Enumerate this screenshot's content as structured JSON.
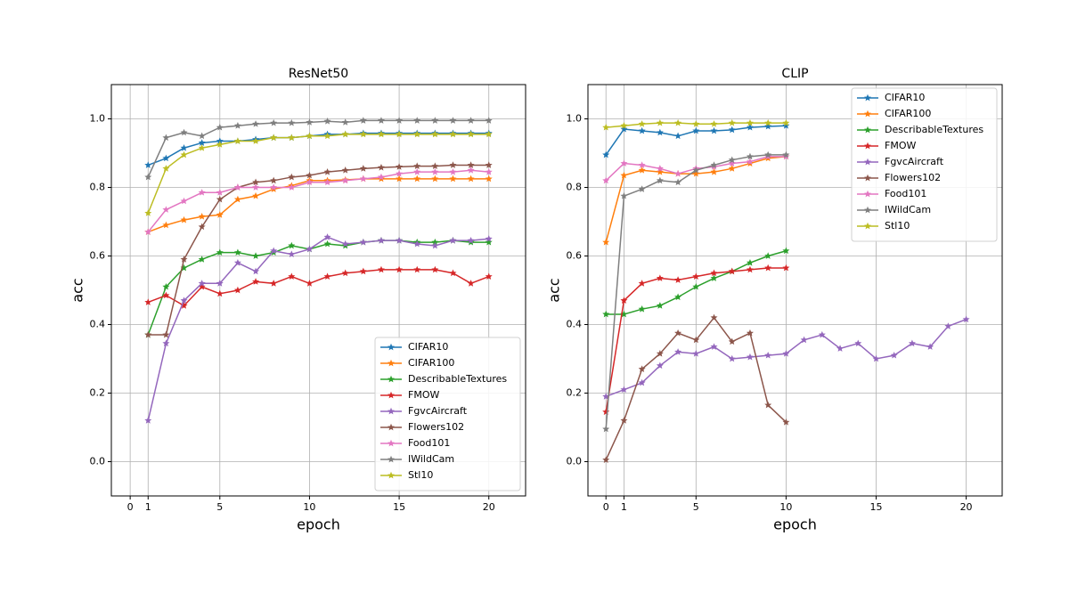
{
  "chart_data": [
    {
      "type": "line",
      "title": "ResNet50",
      "x_label": "epoch",
      "y_label": "acc",
      "x": [
        1,
        2,
        3,
        4,
        5,
        6,
        7,
        8,
        9,
        10,
        11,
        12,
        13,
        14,
        15,
        16,
        17,
        18,
        19,
        20
      ],
      "xlim": [
        -1.05,
        22.05
      ],
      "xticks": [
        0,
        1,
        5,
        10,
        15,
        20
      ],
      "ylim": [
        -0.1,
        1.1
      ],
      "yticks": [
        {
          "value": 0,
          "label": "0.0"
        },
        0.2,
        0.4,
        0.6,
        0.8,
        {
          "value": 1,
          "label": "1.0"
        }
      ],
      "grid": true,
      "legend": "lower right",
      "marker": "star",
      "series": [
        {
          "name": "CIFAR10",
          "color": "#1f77b4",
          "values": [
            0.865,
            0.885,
            0.915,
            0.93,
            0.935,
            0.935,
            0.94,
            0.945,
            0.945,
            0.95,
            0.955,
            0.955,
            0.958,
            0.958,
            0.958,
            0.958,
            0.958,
            0.958,
            0.958,
            0.958
          ]
        },
        {
          "name": "CIFAR100",
          "color": "#ff7f0e",
          "values": [
            0.67,
            0.69,
            0.705,
            0.715,
            0.72,
            0.765,
            0.775,
            0.795,
            0.805,
            0.82,
            0.82,
            0.822,
            0.825,
            0.825,
            0.825,
            0.825,
            0.825,
            0.825,
            0.825,
            0.825
          ]
        },
        {
          "name": "DescribableTextures",
          "color": "#2ca02c",
          "values": [
            0.37,
            0.51,
            0.565,
            0.59,
            0.61,
            0.61,
            0.6,
            0.61,
            0.63,
            0.62,
            0.635,
            0.63,
            0.64,
            0.645,
            0.645,
            0.64,
            0.64,
            0.645,
            0.64,
            0.64
          ]
        },
        {
          "name": "FMOW",
          "color": "#d62728",
          "values": [
            0.465,
            0.485,
            0.455,
            0.51,
            0.49,
            0.5,
            0.525,
            0.52,
            0.54,
            0.52,
            0.54,
            0.55,
            0.555,
            0.56,
            0.56,
            0.56,
            0.56,
            0.55,
            0.52,
            0.54
          ]
        },
        {
          "name": "FgvcAircraft",
          "color": "#9467bd",
          "values": [
            0.12,
            0.345,
            0.47,
            0.52,
            0.52,
            0.58,
            0.555,
            0.615,
            0.605,
            0.62,
            0.655,
            0.635,
            0.64,
            0.645,
            0.645,
            0.635,
            0.63,
            0.645,
            0.645,
            0.65
          ]
        },
        {
          "name": "Flowers102",
          "color": "#8c564b",
          "values": [
            0.37,
            0.37,
            0.59,
            0.685,
            0.765,
            0.8,
            0.815,
            0.82,
            0.83,
            0.835,
            0.845,
            0.85,
            0.855,
            0.858,
            0.86,
            0.862,
            0.862,
            0.865,
            0.865,
            0.865
          ]
        },
        {
          "name": "Food101",
          "color": "#e377c2",
          "values": [
            0.67,
            0.735,
            0.76,
            0.785,
            0.785,
            0.8,
            0.8,
            0.8,
            0.8,
            0.815,
            0.815,
            0.82,
            0.825,
            0.83,
            0.84,
            0.845,
            0.845,
            0.845,
            0.85,
            0.845
          ]
        },
        {
          "name": "IWildCam",
          "color": "#7f7f7f",
          "values": [
            0.83,
            0.945,
            0.96,
            0.95,
            0.975,
            0.98,
            0.985,
            0.988,
            0.988,
            0.99,
            0.993,
            0.99,
            0.995,
            0.995,
            0.995,
            0.995,
            0.995,
            0.995,
            0.995,
            0.995
          ]
        },
        {
          "name": "Stl10",
          "color": "#bcbd22",
          "values": [
            0.725,
            0.855,
            0.895,
            0.915,
            0.925,
            0.935,
            0.935,
            0.945,
            0.945,
            0.95,
            0.95,
            0.955,
            0.955,
            0.955,
            0.955,
            0.955,
            0.955,
            0.955,
            0.955,
            0.955
          ]
        }
      ]
    },
    {
      "type": "line",
      "title": "CLIP",
      "x_label": "epoch",
      "y_label": "acc",
      "x": [
        0,
        1,
        2,
        3,
        4,
        5,
        6,
        7,
        8,
        9,
        10,
        11,
        12,
        13,
        14,
        15,
        16,
        17,
        18,
        19,
        20
      ],
      "xlim": [
        -1,
        22
      ],
      "xticks": [
        0,
        1,
        5,
        10,
        15,
        20
      ],
      "ylim": [
        -0.1,
        1.1
      ],
      "yticks": [
        {
          "value": 0,
          "label": "0.0"
        },
        0.2,
        0.4,
        0.6,
        0.8,
        {
          "value": 1,
          "label": "1.0"
        }
      ],
      "grid": true,
      "legend": "upper right",
      "marker": "star",
      "series": [
        {
          "name": "CIFAR10",
          "color": "#1f77b4",
          "values": [
            0.895,
            0.97,
            0.965,
            0.96,
            0.95,
            0.965,
            0.965,
            0.968,
            0.975,
            0.978,
            0.98,
            null,
            null,
            null,
            null,
            null,
            null,
            null,
            null,
            null,
            null
          ]
        },
        {
          "name": "CIFAR100",
          "color": "#ff7f0e",
          "values": [
            0.64,
            0.835,
            0.85,
            0.845,
            0.84,
            0.84,
            0.845,
            0.855,
            0.87,
            0.885,
            0.89,
            null,
            null,
            null,
            null,
            null,
            null,
            null,
            null,
            null,
            null
          ]
        },
        {
          "name": "DescribableTextures",
          "color": "#2ca02c",
          "values": [
            0.43,
            0.43,
            0.445,
            0.455,
            0.48,
            0.51,
            0.535,
            0.555,
            0.58,
            0.6,
            0.615,
            null,
            null,
            null,
            null,
            null,
            null,
            null,
            null,
            null,
            null
          ]
        },
        {
          "name": "FMOW",
          "color": "#d62728",
          "values": [
            0.145,
            0.47,
            0.52,
            0.535,
            0.53,
            0.54,
            0.55,
            0.555,
            0.56,
            0.565,
            0.565,
            null,
            null,
            null,
            null,
            null,
            null,
            null,
            null,
            null,
            null
          ]
        },
        {
          "name": "FgvcAircraft",
          "color": "#9467bd",
          "values": [
            0.19,
            0.21,
            0.23,
            0.28,
            0.32,
            0.315,
            0.335,
            0.3,
            0.305,
            0.31,
            0.315,
            0.355,
            0.37,
            0.33,
            0.345,
            0.3,
            0.31,
            0.345,
            0.335,
            0.395,
            0.415
          ]
        },
        {
          "name": "Flowers102",
          "color": "#8c564b",
          "values": [
            0.005,
            0.12,
            0.27,
            0.315,
            0.375,
            0.355,
            0.42,
            0.35,
            0.375,
            0.165,
            0.115,
            null,
            null,
            null,
            null,
            null,
            null,
            null,
            null,
            null,
            null
          ]
        },
        {
          "name": "Food101",
          "color": "#e377c2",
          "values": [
            0.82,
            0.87,
            0.865,
            0.855,
            0.84,
            0.855,
            0.86,
            0.87,
            0.875,
            0.89,
            0.89,
            null,
            null,
            null,
            null,
            null,
            null,
            null,
            null,
            null,
            null
          ]
        },
        {
          "name": "IWildCam",
          "color": "#7f7f7f",
          "values": [
            0.095,
            0.775,
            0.795,
            0.82,
            0.815,
            0.85,
            0.865,
            0.88,
            0.89,
            0.895,
            0.895,
            null,
            null,
            null,
            null,
            null,
            null,
            null,
            null,
            null,
            null
          ]
        },
        {
          "name": "Stl10",
          "color": "#bcbd22",
          "values": [
            0.975,
            0.98,
            0.985,
            0.988,
            0.988,
            0.985,
            0.985,
            0.988,
            0.988,
            0.988,
            0.988,
            null,
            null,
            null,
            null,
            null,
            null,
            null,
            null,
            null,
            null
          ]
        }
      ]
    }
  ]
}
